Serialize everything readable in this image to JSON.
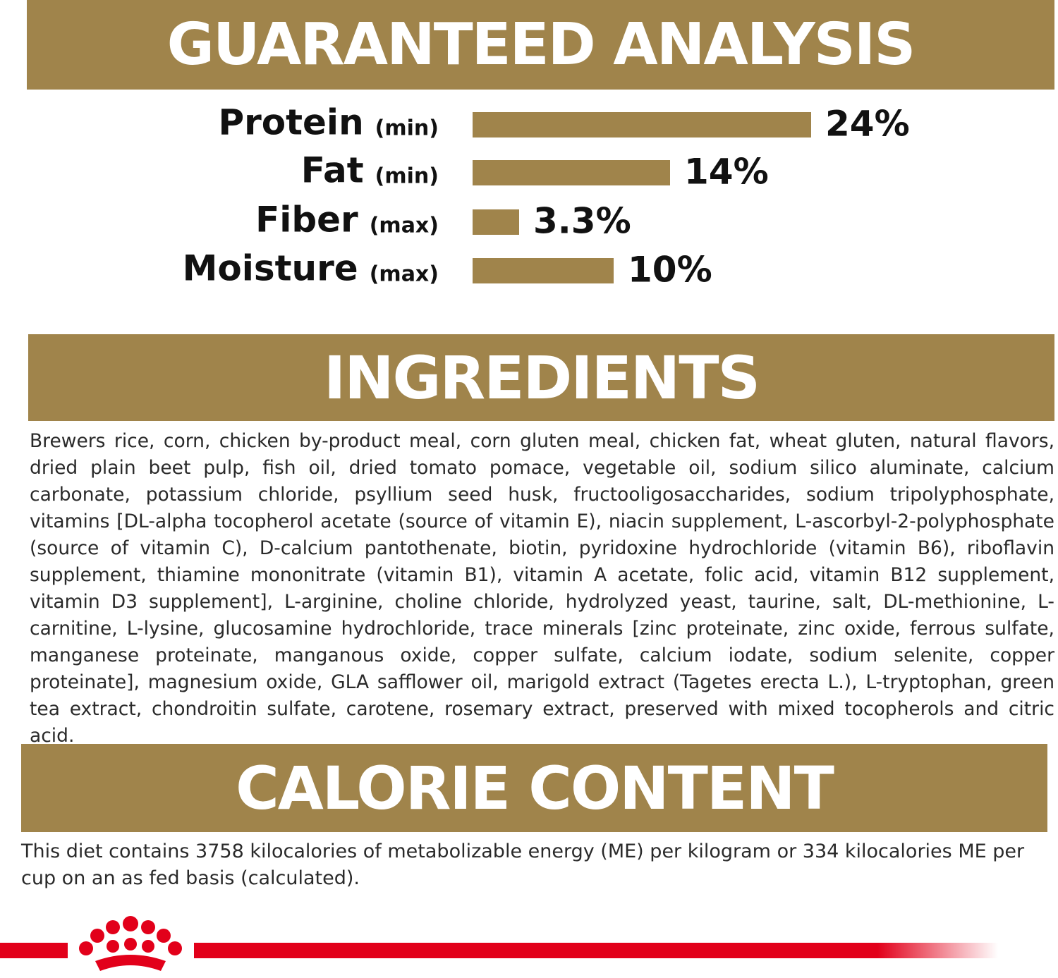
{
  "guaranteed_analysis": {
    "type": "bar",
    "title": "GUARANTEED ANALYSIS",
    "categories": [
      "Protein",
      "Fat",
      "Fiber",
      "Moisture"
    ],
    "qualifiers": [
      "(min)",
      "(min)",
      "(max)",
      "(max)"
    ],
    "values": [
      24,
      14,
      3.3,
      10
    ],
    "value_labels": [
      "24%",
      "14%",
      "3.3%",
      "10%"
    ],
    "color": "#a0844b"
  },
  "ingredients": {
    "title": "INGREDIENTS",
    "text": "Brewers rice, corn, chicken by-product meal, corn gluten meal, chicken fat, wheat gluten, natural flavors, dried plain beet pulp, fish oil, dried tomato pomace, vegetable oil, sodium silico aluminate, calcium carbonate, potassium chloride, psyllium seed husk, fructooligosaccharides, sodium tripolyphosphate, vitamins [DL-alpha tocopherol acetate (source of vitamin E), niacin supplement, L-ascorbyl-2-polyphosphate (source of vitamin C), D-calcium pantothenate, biotin, pyridoxine hydrochloride (vitamin B6), riboflavin supplement, thiamine mononitrate (vitamin B1), vitamin A acetate, folic acid, vitamin B12 supplement, vitamin D3 supplement], L-arginine, choline chloride, hydrolyzed yeast, taurine, salt, DL-methionine, L-carnitine, L-lysine, glucosamine hydrochloride, trace minerals [zinc proteinate, zinc oxide, ferrous sulfate, manganese proteinate, manganous oxide, copper sulfate, calcium iodate, sodium selenite, copper proteinate], magnesium oxide, GLA safflower oil, marigold extract (Tagetes erecta L.), L-tryptophan, green tea extract, chondroitin sulfate, carotene, rosemary extract, preserved with mixed tocopherols and citric acid."
  },
  "calorie_content": {
    "title": "CALORIE CONTENT",
    "text": "This diet contains 3758 kilocalories of metabolizable energy (ME) per kilogram or 334 kilocalories ME per cup on an as fed basis (calculated)."
  }
}
